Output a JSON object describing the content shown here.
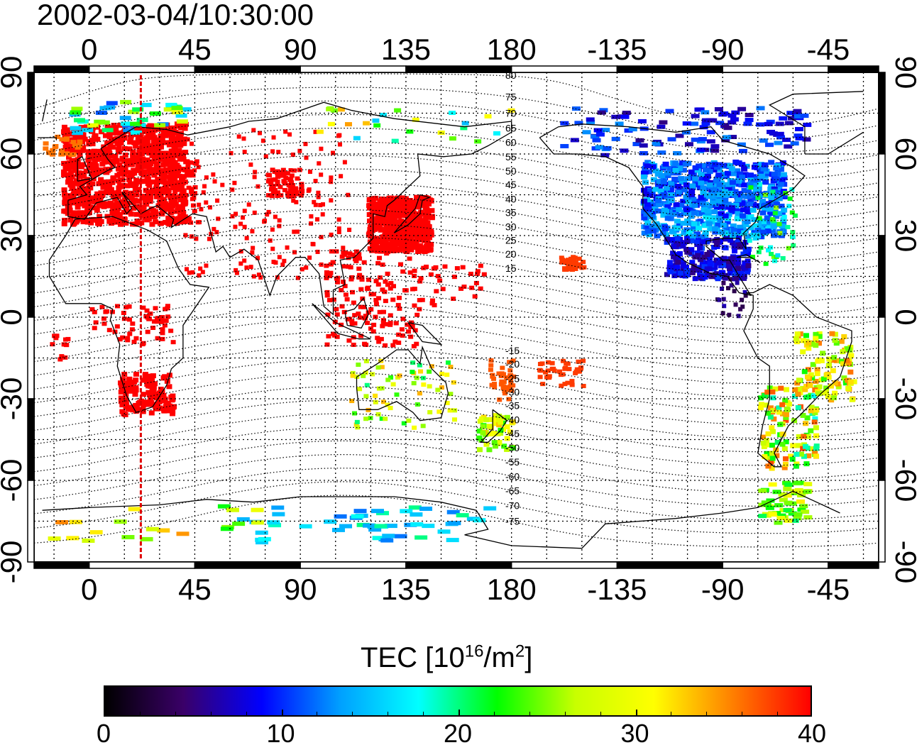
{
  "timestamp": "2002-03-04/10:30:00",
  "map": {
    "top_longitude_labels": [
      "0",
      "45",
      "90",
      "135",
      "180",
      "-135",
      "-90",
      "-45"
    ],
    "bottom_longitude_labels": [
      "0",
      "45",
      "90",
      "135",
      "180",
      "-135",
      "-90",
      "-45"
    ],
    "left_latitude_labels": [
      "90",
      "60",
      "30",
      "0",
      "-30",
      "-60",
      "-90"
    ],
    "right_latitude_labels": [
      "90",
      "60",
      "30",
      "0",
      "-30",
      "-60",
      "-90"
    ],
    "magnetic_latitude_labels": [
      "80",
      "75",
      "70",
      "65",
      "60",
      "55",
      "50",
      "45",
      "40",
      "35",
      "30",
      "25",
      "20",
      "15",
      "-15",
      "-20",
      "-25",
      "-30",
      "-35",
      "-40",
      "-45",
      "-50",
      "-55",
      "-60",
      "-65",
      "-70",
      "-75"
    ],
    "terminator_longitude": 22,
    "grid": true,
    "colors": {
      "terminator": "#e00000",
      "coastline": "#000000",
      "grid": "#000000"
    }
  },
  "colorbar": {
    "title": "TEC  [10",
    "title_exp": "16",
    "title_unit": "/m",
    "title_unit_exp": "2",
    "title_close": "]",
    "min": 0,
    "max": 40,
    "tick_labels": [
      "0",
      "10",
      "20",
      "30",
      "40"
    ],
    "colors": [
      "#000000",
      "#3a0068",
      "#0000ff",
      "#00a0ff",
      "#00ffff",
      "#00ff00",
      "#c8ff00",
      "#ffff00",
      "#ff8000",
      "#ff0000"
    ]
  },
  "tec_regions": [
    {
      "name": "europe",
      "lat": 50,
      "lon": 12,
      "tec": 40
    },
    {
      "name": "east-asia",
      "lat": 33,
      "lon": 130,
      "tec": 40
    },
    {
      "name": "north-america",
      "lat": 40,
      "lon": -95,
      "tec": 10
    },
    {
      "name": "south-america",
      "lat": -25,
      "lon": -50,
      "tec": 27
    },
    {
      "name": "australia",
      "lat": -28,
      "lon": 135,
      "tec": 25
    },
    {
      "name": "antarctica",
      "lat": -75,
      "lon": 120,
      "tec": 15
    },
    {
      "name": "south-africa",
      "lat": -28,
      "lon": 25,
      "tec": 40
    },
    {
      "name": "hawaii",
      "lat": 20,
      "lon": -157,
      "tec": 38
    }
  ]
}
